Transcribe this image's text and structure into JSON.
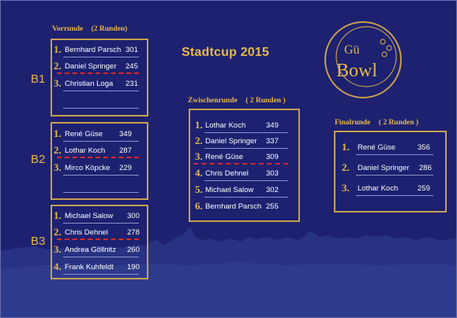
{
  "title": "Stadtcup 2015",
  "logo": {
    "line1": "Gü",
    "line2": "Bowl"
  },
  "vorrunde": {
    "label": "Vorrunde",
    "runs": "(2 Runden)",
    "groups": [
      {
        "label": "B1",
        "players": [
          {
            "rank": "1.",
            "name": "Bernhard Parsch",
            "score": "301"
          },
          {
            "rank": "2.",
            "name": "Daniel Springer",
            "score": "245"
          },
          {
            "rank": "3.",
            "name": "Christian Loga",
            "score": "231"
          }
        ]
      },
      {
        "label": "B2",
        "players": [
          {
            "rank": "1.",
            "name": "René Güse",
            "score": "349"
          },
          {
            "rank": "2.",
            "name": "Lothar Koch",
            "score": "287"
          },
          {
            "rank": "3.",
            "name": "Mirco Köpcke",
            "score": "229"
          }
        ]
      },
      {
        "label": "B3",
        "players": [
          {
            "rank": "1.",
            "name": "Michael Salow",
            "score": "300"
          },
          {
            "rank": "2.",
            "name": "Chris Dehnel",
            "score": "278"
          },
          {
            "rank": "3.",
            "name": "Andrea Göllnitz",
            "score": "260"
          },
          {
            "rank": "4.",
            "name": "Frank Kuhfeldt",
            "score": "190"
          }
        ]
      }
    ]
  },
  "zwischenrunde": {
    "label": "Zwischenrunde",
    "runs": "( 2 Runden )",
    "players": [
      {
        "rank": "1.",
        "name": "Lothar Koch",
        "score": "349"
      },
      {
        "rank": "2.",
        "name": "Daniel Springer",
        "score": "337"
      },
      {
        "rank": "3.",
        "name": "René Güse",
        "score": "309"
      },
      {
        "rank": "4.",
        "name": "Chris Dehnel",
        "score": "303"
      },
      {
        "rank": "5.",
        "name": "Michael Salow",
        "score": "302"
      },
      {
        "rank": "6.",
        "name": "Bernhard Parsch",
        "score": "255"
      }
    ]
  },
  "finalrunde": {
    "label": "Finalrunde",
    "runs": "( 2 Runden )",
    "players": [
      {
        "rank": "1.",
        "name": "René Güse",
        "score": "356"
      },
      {
        "rank": "2.",
        "name": "Daniel Springer",
        "score": "286"
      },
      {
        "rank": "3.",
        "name": "Lothar Koch",
        "score": "259"
      }
    ]
  },
  "colors": {
    "background": "#1d2170",
    "gold": "#e8b84a",
    "frame": "#c8a050",
    "cutoff": "#d42a2a",
    "skyline": "#2a3480"
  }
}
